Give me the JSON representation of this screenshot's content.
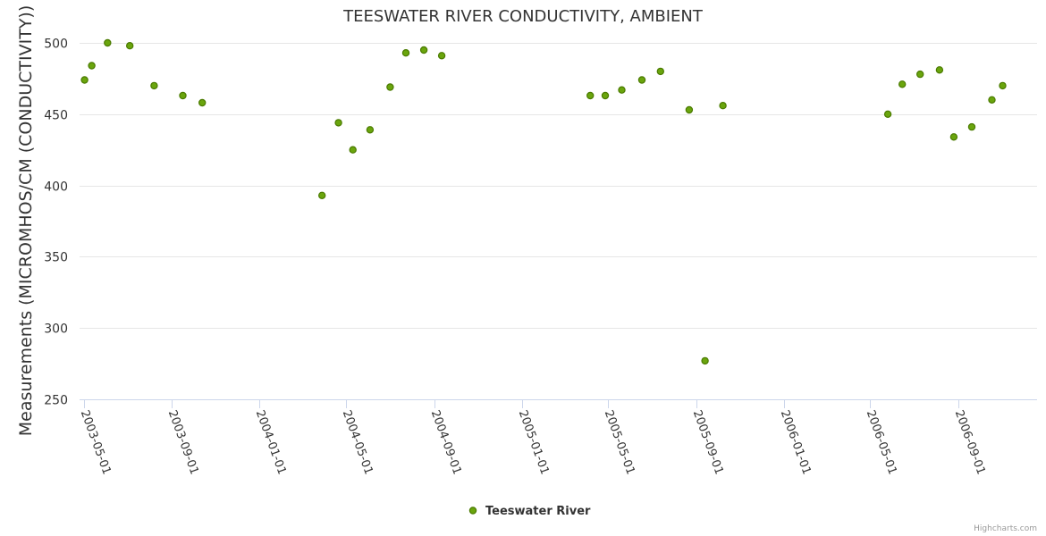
{
  "chart_data": {
    "type": "scatter",
    "title": "TEESWATER RIVER CONDUCTIVITY, AMBIENT",
    "xlabel": "",
    "ylabel": "Measurements (MICROMHOS/CM (CONDUCTIVITY))",
    "ylim": [
      250,
      505
    ],
    "yticks": [
      250,
      300,
      350,
      400,
      450,
      500
    ],
    "xlim": [
      "2003-04-25",
      "2006-12-20"
    ],
    "xticks": [
      "2003-05-01",
      "2003-09-01",
      "2004-01-01",
      "2004-05-01",
      "2004-09-01",
      "2005-01-01",
      "2005-05-01",
      "2005-09-01",
      "2006-01-01",
      "2006-05-01",
      "2006-09-01"
    ],
    "grid": true,
    "legend": "bottom-center",
    "series": [
      {
        "name": "Teeswater River",
        "color": "#6aa50d",
        "stroke": "#4a7a00",
        "points": [
          {
            "x": "2003-05-02",
            "y": 474
          },
          {
            "x": "2003-05-12",
            "y": 484
          },
          {
            "x": "2003-06-03",
            "y": 500
          },
          {
            "x": "2003-07-04",
            "y": 498
          },
          {
            "x": "2003-08-07",
            "y": 470
          },
          {
            "x": "2003-09-16",
            "y": 463
          },
          {
            "x": "2003-10-13",
            "y": 458
          },
          {
            "x": "2004-03-28",
            "y": 393
          },
          {
            "x": "2004-04-20",
            "y": 444
          },
          {
            "x": "2004-05-10",
            "y": 425
          },
          {
            "x": "2004-06-03",
            "y": 439
          },
          {
            "x": "2004-07-01",
            "y": 469
          },
          {
            "x": "2004-07-23",
            "y": 493
          },
          {
            "x": "2004-08-17",
            "y": 495
          },
          {
            "x": "2004-09-11",
            "y": 491
          },
          {
            "x": "2005-04-06",
            "y": 463
          },
          {
            "x": "2005-04-27",
            "y": 463
          },
          {
            "x": "2005-05-20",
            "y": 467
          },
          {
            "x": "2005-06-17",
            "y": 474
          },
          {
            "x": "2005-07-13",
            "y": 480
          },
          {
            "x": "2005-08-22",
            "y": 453
          },
          {
            "x": "2005-09-13",
            "y": 277
          },
          {
            "x": "2005-10-08",
            "y": 456
          },
          {
            "x": "2006-05-26",
            "y": 450
          },
          {
            "x": "2006-06-15",
            "y": 471
          },
          {
            "x": "2006-07-10",
            "y": 478
          },
          {
            "x": "2006-08-06",
            "y": 481
          },
          {
            "x": "2006-08-26",
            "y": 434
          },
          {
            "x": "2006-09-20",
            "y": 441
          },
          {
            "x": "2006-10-18",
            "y": 460
          },
          {
            "x": "2006-11-02",
            "y": 470
          }
        ]
      }
    ]
  },
  "credit": "Highcharts.com"
}
